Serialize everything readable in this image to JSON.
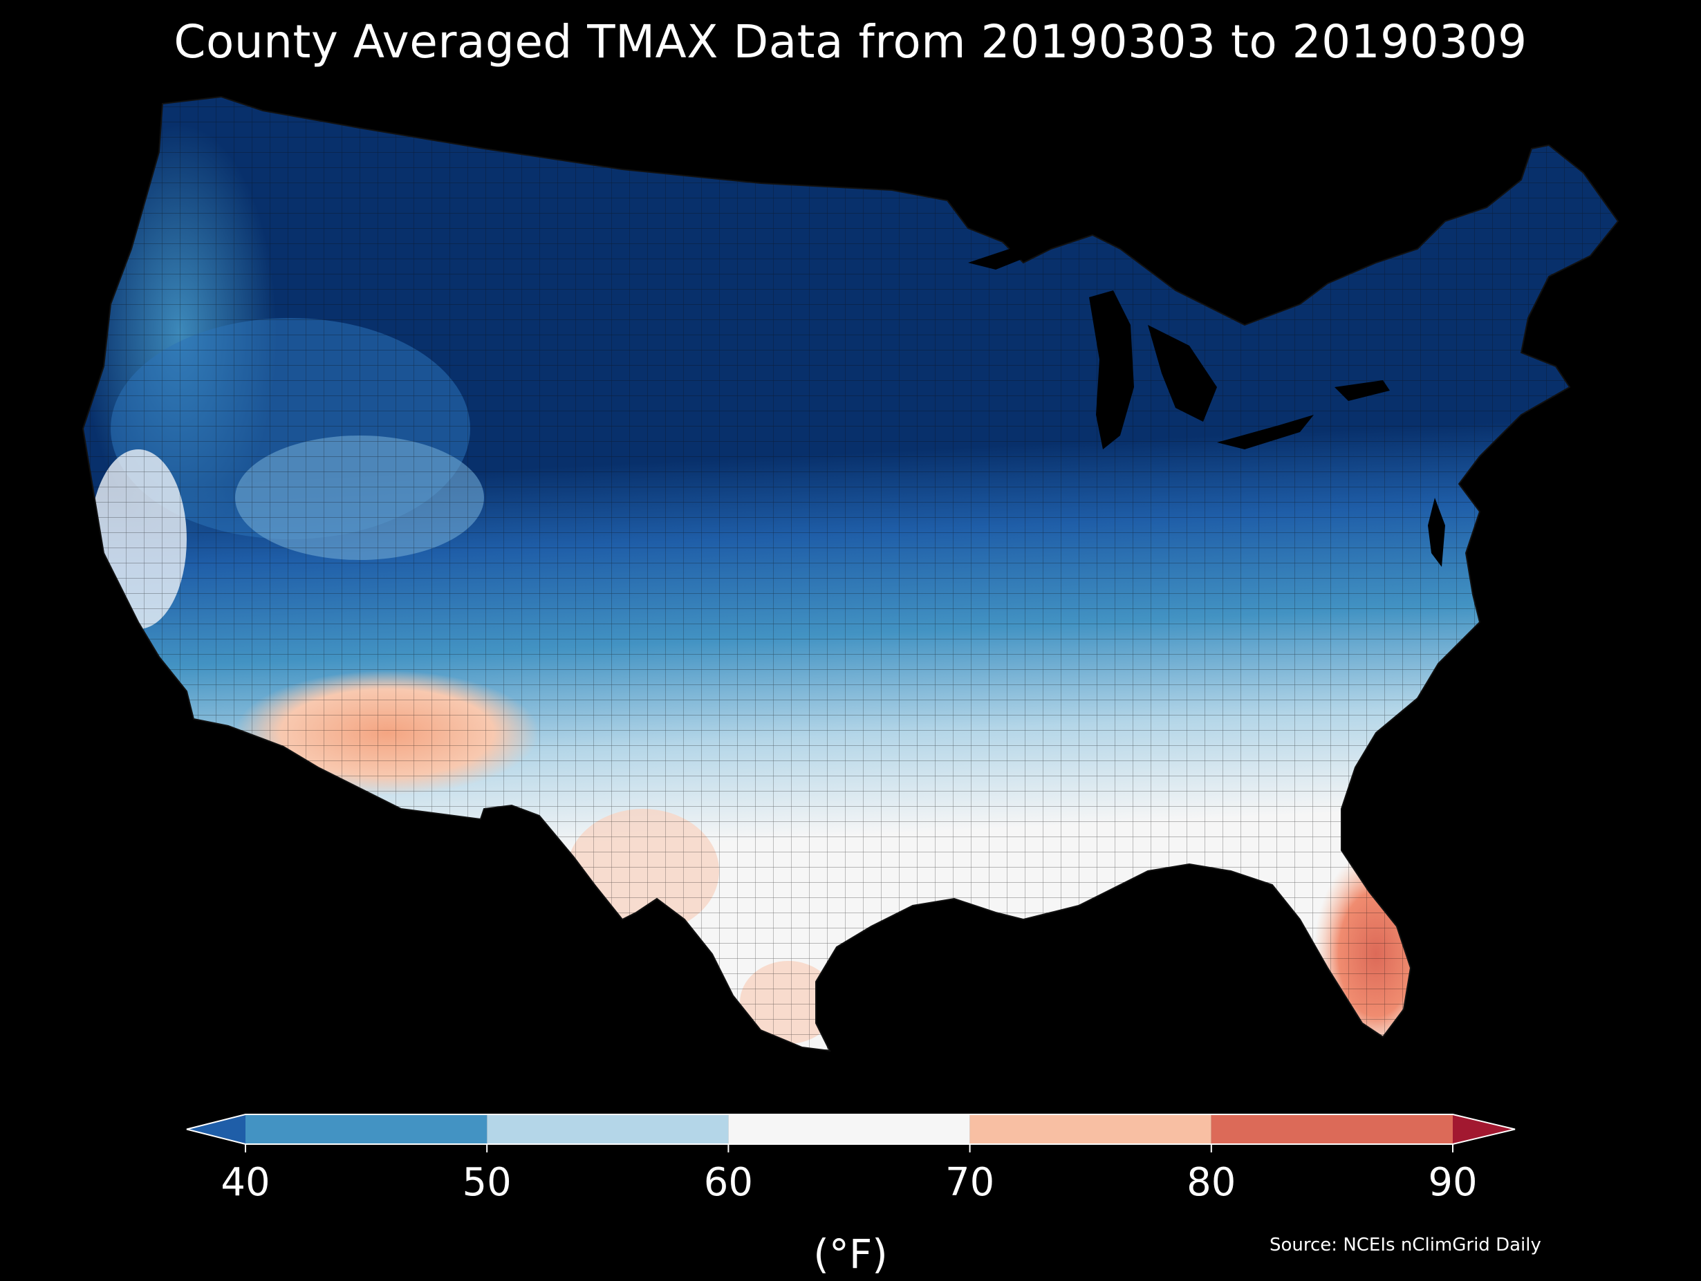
{
  "title": "County Averaged TMAX Data from 20190303 to 20190309",
  "map": {
    "region": "Contiguous United States",
    "level": "county",
    "variable": "TMAX",
    "background_color": "#000000",
    "boundary_color": "#1a1a1a"
  },
  "colorbar": {
    "label": "(°F)",
    "ticks": [
      "40",
      "50",
      "60",
      "70",
      "80",
      "90"
    ],
    "bins": [
      {
        "range": "<40",
        "color": "#1f5ea8"
      },
      {
        "range": "40-50",
        "color": "#4393c3"
      },
      {
        "range": "50-60",
        "color": "#b4d6e8"
      },
      {
        "range": "60-70",
        "color": "#f6f6f6"
      },
      {
        "range": "70-80",
        "color": "#f8bfa3"
      },
      {
        "range": "80-90",
        "color": "#dc6a58"
      },
      {
        "range": ">90",
        "color": "#a21830"
      }
    ]
  },
  "palette": {
    "cold_deep": "#08306b",
    "cold": "#1f5ea8",
    "cool": "#4393c3",
    "mild": "#b4d6e8",
    "neutral": "#f6f6f6",
    "warm": "#f8bfa3",
    "hot": "#dc6a58"
  },
  "source": "Source: NCEIs nClimGrid Daily"
}
